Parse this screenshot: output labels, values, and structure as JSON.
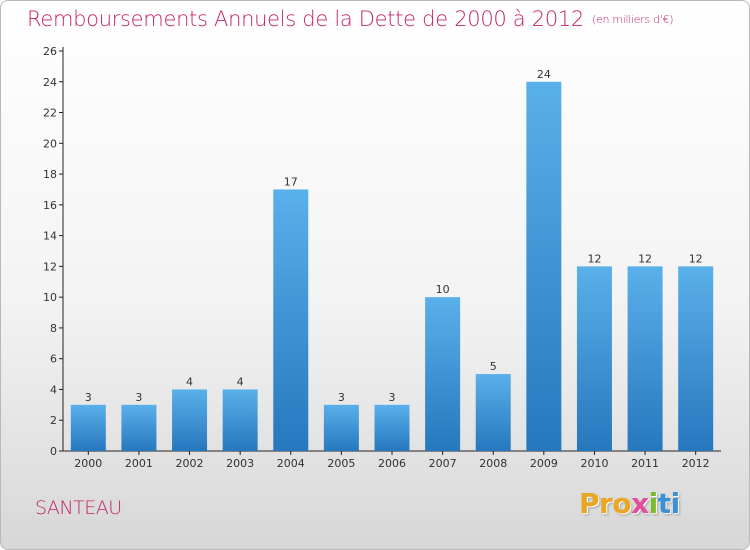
{
  "chart_data": {
    "type": "bar",
    "title": "Remboursements Annuels de la Dette de 2000 à 2012",
    "unit": "(en milliers d'€)",
    "categories": [
      "2000",
      "2001",
      "2002",
      "2003",
      "2004",
      "2005",
      "2006",
      "2007",
      "2008",
      "2009",
      "2010",
      "2011",
      "2012"
    ],
    "values": [
      3,
      3,
      4,
      4,
      17,
      3,
      3,
      10,
      5,
      24,
      12,
      12,
      12
    ],
    "ylim": [
      0,
      26
    ],
    "yticks": [
      0,
      2,
      4,
      6,
      8,
      10,
      12,
      14,
      16,
      18,
      20,
      22,
      24,
      26
    ],
    "grid": false,
    "colors": {
      "bar_top": "#5ab0ea",
      "bar_bottom": "#2777bd",
      "title": "#c0266a"
    }
  },
  "commune": "SANTEAU",
  "logo": {
    "text": [
      "Pro",
      "x",
      "i",
      "ti"
    ]
  }
}
